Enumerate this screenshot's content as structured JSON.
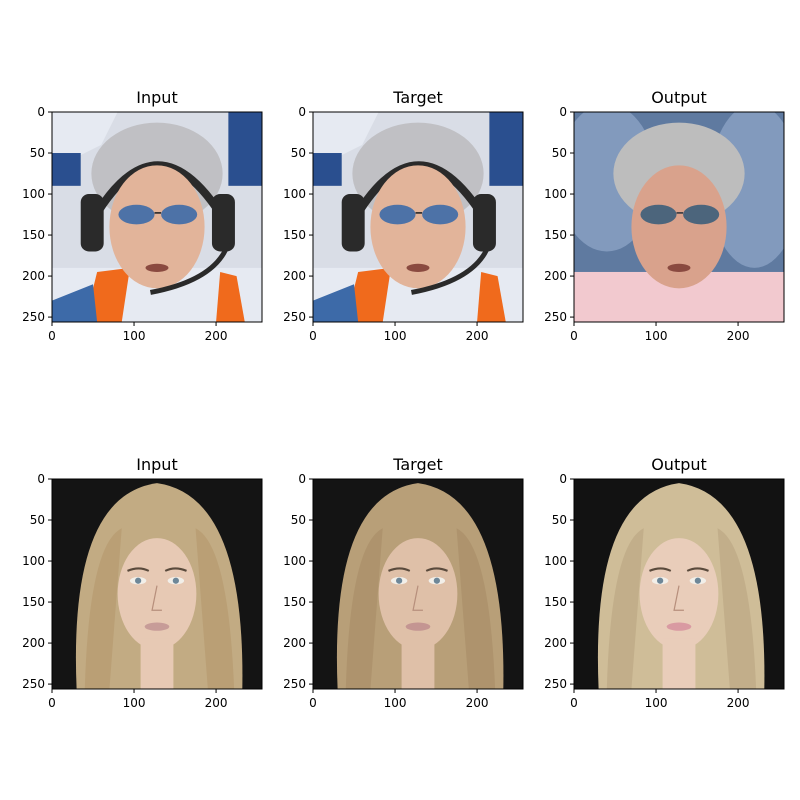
{
  "chart_data": [
    {
      "type": "image",
      "title": "Input",
      "row": 0,
      "col": 0,
      "image": "face-man-racing-headset-sunglasses",
      "xlim": [
        0,
        256
      ],
      "ylim": [
        256,
        0
      ],
      "xticks": [
        0,
        100,
        200
      ],
      "yticks": [
        0,
        50,
        100,
        150,
        200,
        250
      ],
      "palette": [
        "#d9dde6",
        "#2a4f8f",
        "#e6eaf2",
        "#e2b49a",
        "#c0c0c4",
        "#2a2a2a",
        "#3d6aa8",
        "#f06a1c"
      ]
    },
    {
      "type": "image",
      "title": "Target",
      "row": 0,
      "col": 1,
      "image": "face-man-racing-headset-sunglasses",
      "xlim": [
        0,
        256
      ],
      "ylim": [
        256,
        0
      ],
      "xticks": [
        0,
        100,
        200
      ],
      "yticks": [
        0,
        50,
        100,
        150,
        200,
        250
      ],
      "palette": [
        "#d9dde6",
        "#2a4f8f",
        "#e6eaf2",
        "#e2b49a",
        "#c0c0c4",
        "#2a2a2a",
        "#3d6aa8",
        "#f06a1c"
      ]
    },
    {
      "type": "image",
      "title": "Output",
      "row": 0,
      "col": 2,
      "image": "face-man-generated-blurry",
      "xlim": [
        0,
        256
      ],
      "ylim": [
        256,
        0
      ],
      "xticks": [
        0,
        100,
        200
      ],
      "yticks": [
        0,
        50,
        100,
        150,
        200,
        250
      ],
      "palette": [
        "#5f7aa0",
        "#8ba2c4",
        "#e6d9dc",
        "#d9a28c",
        "#bdbdbd",
        "#3a3a40",
        "#3c5e7a",
        "#f2c9cf"
      ]
    },
    {
      "type": "image",
      "title": "Input",
      "row": 1,
      "col": 0,
      "image": "face-woman-blonde-long-hair",
      "xlim": [
        0,
        256
      ],
      "ylim": [
        256,
        0
      ],
      "xticks": [
        0,
        100,
        200
      ],
      "yticks": [
        0,
        50,
        100,
        150,
        200,
        250
      ],
      "palette": [
        "#141414",
        "#1c1c1c",
        "#c2ab83",
        "#e7c9b4",
        "#b79a6f",
        "#5a4a3c",
        "#6e8798",
        "#c79c98"
      ]
    },
    {
      "type": "image",
      "title": "Target",
      "row": 1,
      "col": 1,
      "image": "face-woman-blonde-long-hair",
      "xlim": [
        0,
        256
      ],
      "ylim": [
        256,
        0
      ],
      "xticks": [
        0,
        100,
        200
      ],
      "yticks": [
        0,
        50,
        100,
        150,
        200,
        250
      ],
      "palette": [
        "#141414",
        "#1c1c1c",
        "#b89f78",
        "#dfc0a8",
        "#a98f68",
        "#5a4a3c",
        "#6e8798",
        "#c49592"
      ]
    },
    {
      "type": "image",
      "title": "Output",
      "row": 1,
      "col": 2,
      "image": "face-woman-generated",
      "xlim": [
        0,
        256
      ],
      "ylim": [
        256,
        0
      ],
      "xticks": [
        0,
        100,
        200
      ],
      "yticks": [
        0,
        50,
        100,
        150,
        200,
        250
      ],
      "palette": [
        "#121212",
        "#1e1e1e",
        "#cfbd98",
        "#e9cdba",
        "#bca884",
        "#5a4a3c",
        "#6e8798",
        "#d99aa2"
      ]
    }
  ]
}
